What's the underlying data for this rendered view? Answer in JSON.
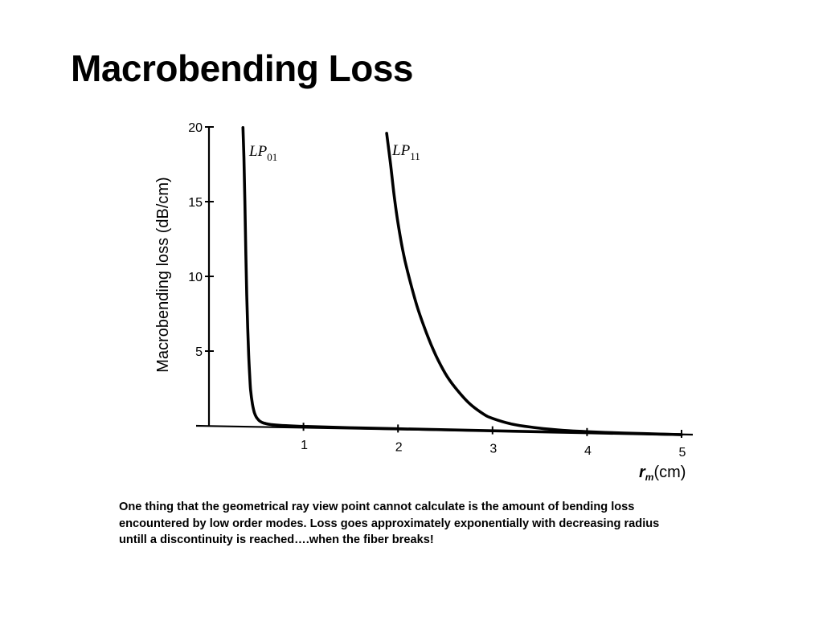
{
  "slide": {
    "title": "Macrobending Loss",
    "caption_lines": [
      "One thing that the geometrical ray view point cannot calculate is the amount of bending loss",
      "encountered by low order modes.  Loss goes approximately exponentially with decreasing radius",
      "untill a discontinuity is reached….when the fiber breaks!"
    ]
  },
  "chart_data": {
    "type": "line",
    "title": "",
    "xlabel": "(cm)",
    "xlabel_symbol": "r",
    "xlabel_subscript": "m",
    "ylabel": "Macrobending loss (dB/cm)",
    "xlim": [
      0,
      5
    ],
    "ylim": [
      0,
      20
    ],
    "x_ticks": [
      "1",
      "2",
      "3",
      "4",
      "5"
    ],
    "y_ticks": [
      "5",
      "10",
      "15",
      "20"
    ],
    "grid": false,
    "colors": {
      "line": "#000000"
    },
    "series": [
      {
        "name": "LP01",
        "label_main": "LP",
        "label_sub": "01",
        "x": [
          0.36,
          0.37,
          0.38,
          0.39,
          0.4,
          0.41,
          0.42,
          0.43,
          0.44,
          0.46,
          0.48,
          0.5,
          0.53,
          0.56,
          0.6,
          0.66,
          0.75,
          0.9,
          1.1,
          1.5,
          2.0,
          3.0,
          4.0,
          5.0
        ],
        "y": [
          20.0,
          18.0,
          15.0,
          11.5,
          8.8,
          6.6,
          4.8,
          3.5,
          2.5,
          1.5,
          0.95,
          0.65,
          0.42,
          0.3,
          0.22,
          0.16,
          0.12,
          0.09,
          0.07,
          0.05,
          0.04,
          0.02,
          0.01,
          0.0
        ]
      },
      {
        "name": "LP11",
        "label_main": "LP",
        "label_sub": "11",
        "x": [
          1.88,
          1.92,
          1.96,
          2.0,
          2.05,
          2.1,
          2.2,
          2.3,
          2.4,
          2.5,
          2.6,
          2.75,
          2.9,
          3.0,
          3.2,
          3.4,
          3.6,
          3.8,
          4.0,
          4.3,
          4.6,
          5.0
        ],
        "y": [
          19.8,
          17.8,
          15.6,
          13.8,
          12.0,
          10.6,
          8.3,
          6.5,
          5.0,
          3.8,
          2.9,
          1.85,
          1.15,
          0.85,
          0.5,
          0.32,
          0.2,
          0.12,
          0.08,
          0.04,
          0.02,
          0.0
        ]
      }
    ]
  }
}
